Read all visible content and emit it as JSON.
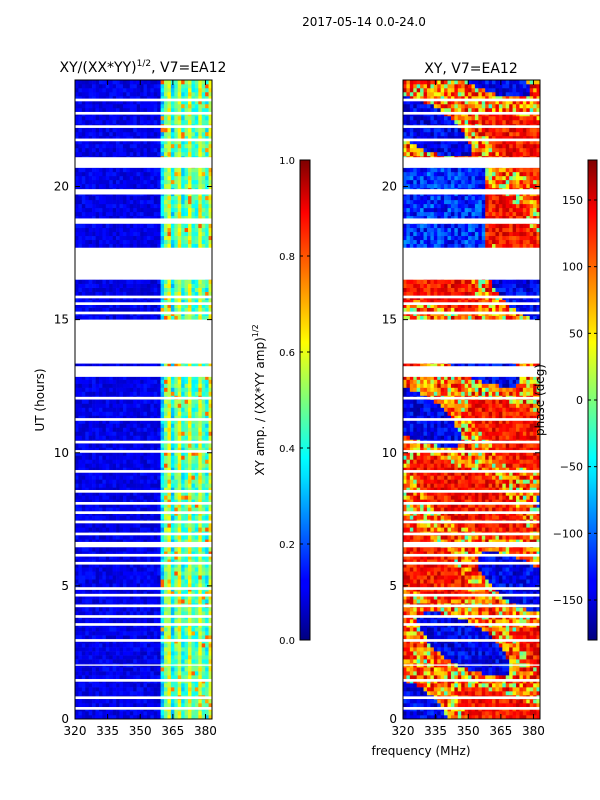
{
  "figure": {
    "title": "2017-05-14 0.0-24.0",
    "xlabel": "frequency (MHz)"
  },
  "chart_data": [
    {
      "type": "heatmap",
      "title_main": "XY/(XX*YY)",
      "title_exp": "1/2",
      "title_tail": ", V7=EA12",
      "ylabel": "UT (hours)",
      "xlim": [
        320,
        383
      ],
      "ylim": [
        0,
        24
      ],
      "xticks": [
        320,
        335,
        350,
        365,
        380
      ],
      "yticks": [
        0,
        5,
        10,
        15,
        20
      ],
      "colorbar": {
        "label_main": "XY amp. / (XX*YY amp)",
        "label_exp": "1/2",
        "range": [
          0.0,
          1.0
        ],
        "ticks": [
          "0.0",
          "0.2",
          "0.4",
          "0.6",
          "0.8",
          "1.0"
        ],
        "colormap": "jet"
      },
      "data_description": "Low amplitude (~0.05-0.15) below 360 MHz; elevated amplitude (~0.3-0.6) in bands 360-383 MHz",
      "gaps_hours": [
        [
          0.35,
          0.45
        ],
        [
          0.75,
          0.85
        ],
        [
          1.4,
          1.5
        ],
        [
          2.0,
          2.05
        ],
        [
          2.9,
          3.0
        ],
        [
          3.5,
          3.6
        ],
        [
          3.8,
          3.9
        ],
        [
          4.2,
          4.3
        ],
        [
          4.6,
          4.7
        ],
        [
          4.85,
          4.95
        ],
        [
          5.8,
          5.9
        ],
        [
          6.1,
          6.2
        ],
        [
          6.45,
          6.65
        ],
        [
          6.9,
          7.0
        ],
        [
          7.35,
          7.45
        ],
        [
          7.7,
          7.8
        ],
        [
          8.05,
          8.15
        ],
        [
          8.5,
          8.6
        ],
        [
          9.25,
          9.35
        ],
        [
          10.0,
          10.1
        ],
        [
          10.35,
          10.45
        ],
        [
          11.2,
          11.3
        ],
        [
          12.0,
          12.1
        ],
        [
          12.85,
          13.25
        ],
        [
          13.35,
          15.0
        ],
        [
          15.2,
          15.3
        ],
        [
          15.55,
          15.65
        ],
        [
          15.8,
          15.9
        ],
        [
          16.5,
          17.7
        ],
        [
          18.6,
          18.8
        ],
        [
          19.7,
          19.9
        ],
        [
          20.7,
          21.1
        ],
        [
          21.7,
          21.8
        ],
        [
          22.2,
          22.3
        ],
        [
          22.7,
          22.8
        ],
        [
          23.2,
          23.3
        ]
      ]
    },
    {
      "type": "heatmap",
      "title": "XY, V7=EA12",
      "xlim": [
        320,
        383
      ],
      "ylim": [
        0,
        24
      ],
      "xticks": [
        320,
        335,
        350,
        365,
        380
      ],
      "yticks": [
        0,
        5,
        10,
        15,
        20
      ],
      "colorbar": {
        "label": "phase (deg)",
        "range": [
          -180,
          180
        ],
        "ticks": [
          "150",
          "100",
          "50",
          "0",
          "−50",
          "−100",
          "−150"
        ],
        "colormap": "jet"
      },
      "data_description": "Phase mostly red/orange (~+100 to +160 deg) mixed with blue (~-150 deg) and green/yellow patches",
      "gaps_hours": [
        [
          0.35,
          0.45
        ],
        [
          0.75,
          0.85
        ],
        [
          1.4,
          1.5
        ],
        [
          2.0,
          2.05
        ],
        [
          2.9,
          3.0
        ],
        [
          3.5,
          3.6
        ],
        [
          3.8,
          3.9
        ],
        [
          4.2,
          4.3
        ],
        [
          4.6,
          4.7
        ],
        [
          4.85,
          4.95
        ],
        [
          5.8,
          5.9
        ],
        [
          6.1,
          6.2
        ],
        [
          6.45,
          6.65
        ],
        [
          6.9,
          7.0
        ],
        [
          7.35,
          7.45
        ],
        [
          7.7,
          7.8
        ],
        [
          8.05,
          8.15
        ],
        [
          8.5,
          8.6
        ],
        [
          9.25,
          9.35
        ],
        [
          10.0,
          10.1
        ],
        [
          10.35,
          10.45
        ],
        [
          11.2,
          11.3
        ],
        [
          12.0,
          12.1
        ],
        [
          12.85,
          13.25
        ],
        [
          13.35,
          15.0
        ],
        [
          15.2,
          15.3
        ],
        [
          15.55,
          15.65
        ],
        [
          15.8,
          15.9
        ],
        [
          16.5,
          17.7
        ],
        [
          18.6,
          18.8
        ],
        [
          19.7,
          19.9
        ],
        [
          20.7,
          21.1
        ],
        [
          21.7,
          21.8
        ],
        [
          22.2,
          22.3
        ],
        [
          22.7,
          22.8
        ],
        [
          23.2,
          23.3
        ]
      ]
    }
  ],
  "colors": {
    "axis": "#000000",
    "gap": "#ffffff"
  }
}
